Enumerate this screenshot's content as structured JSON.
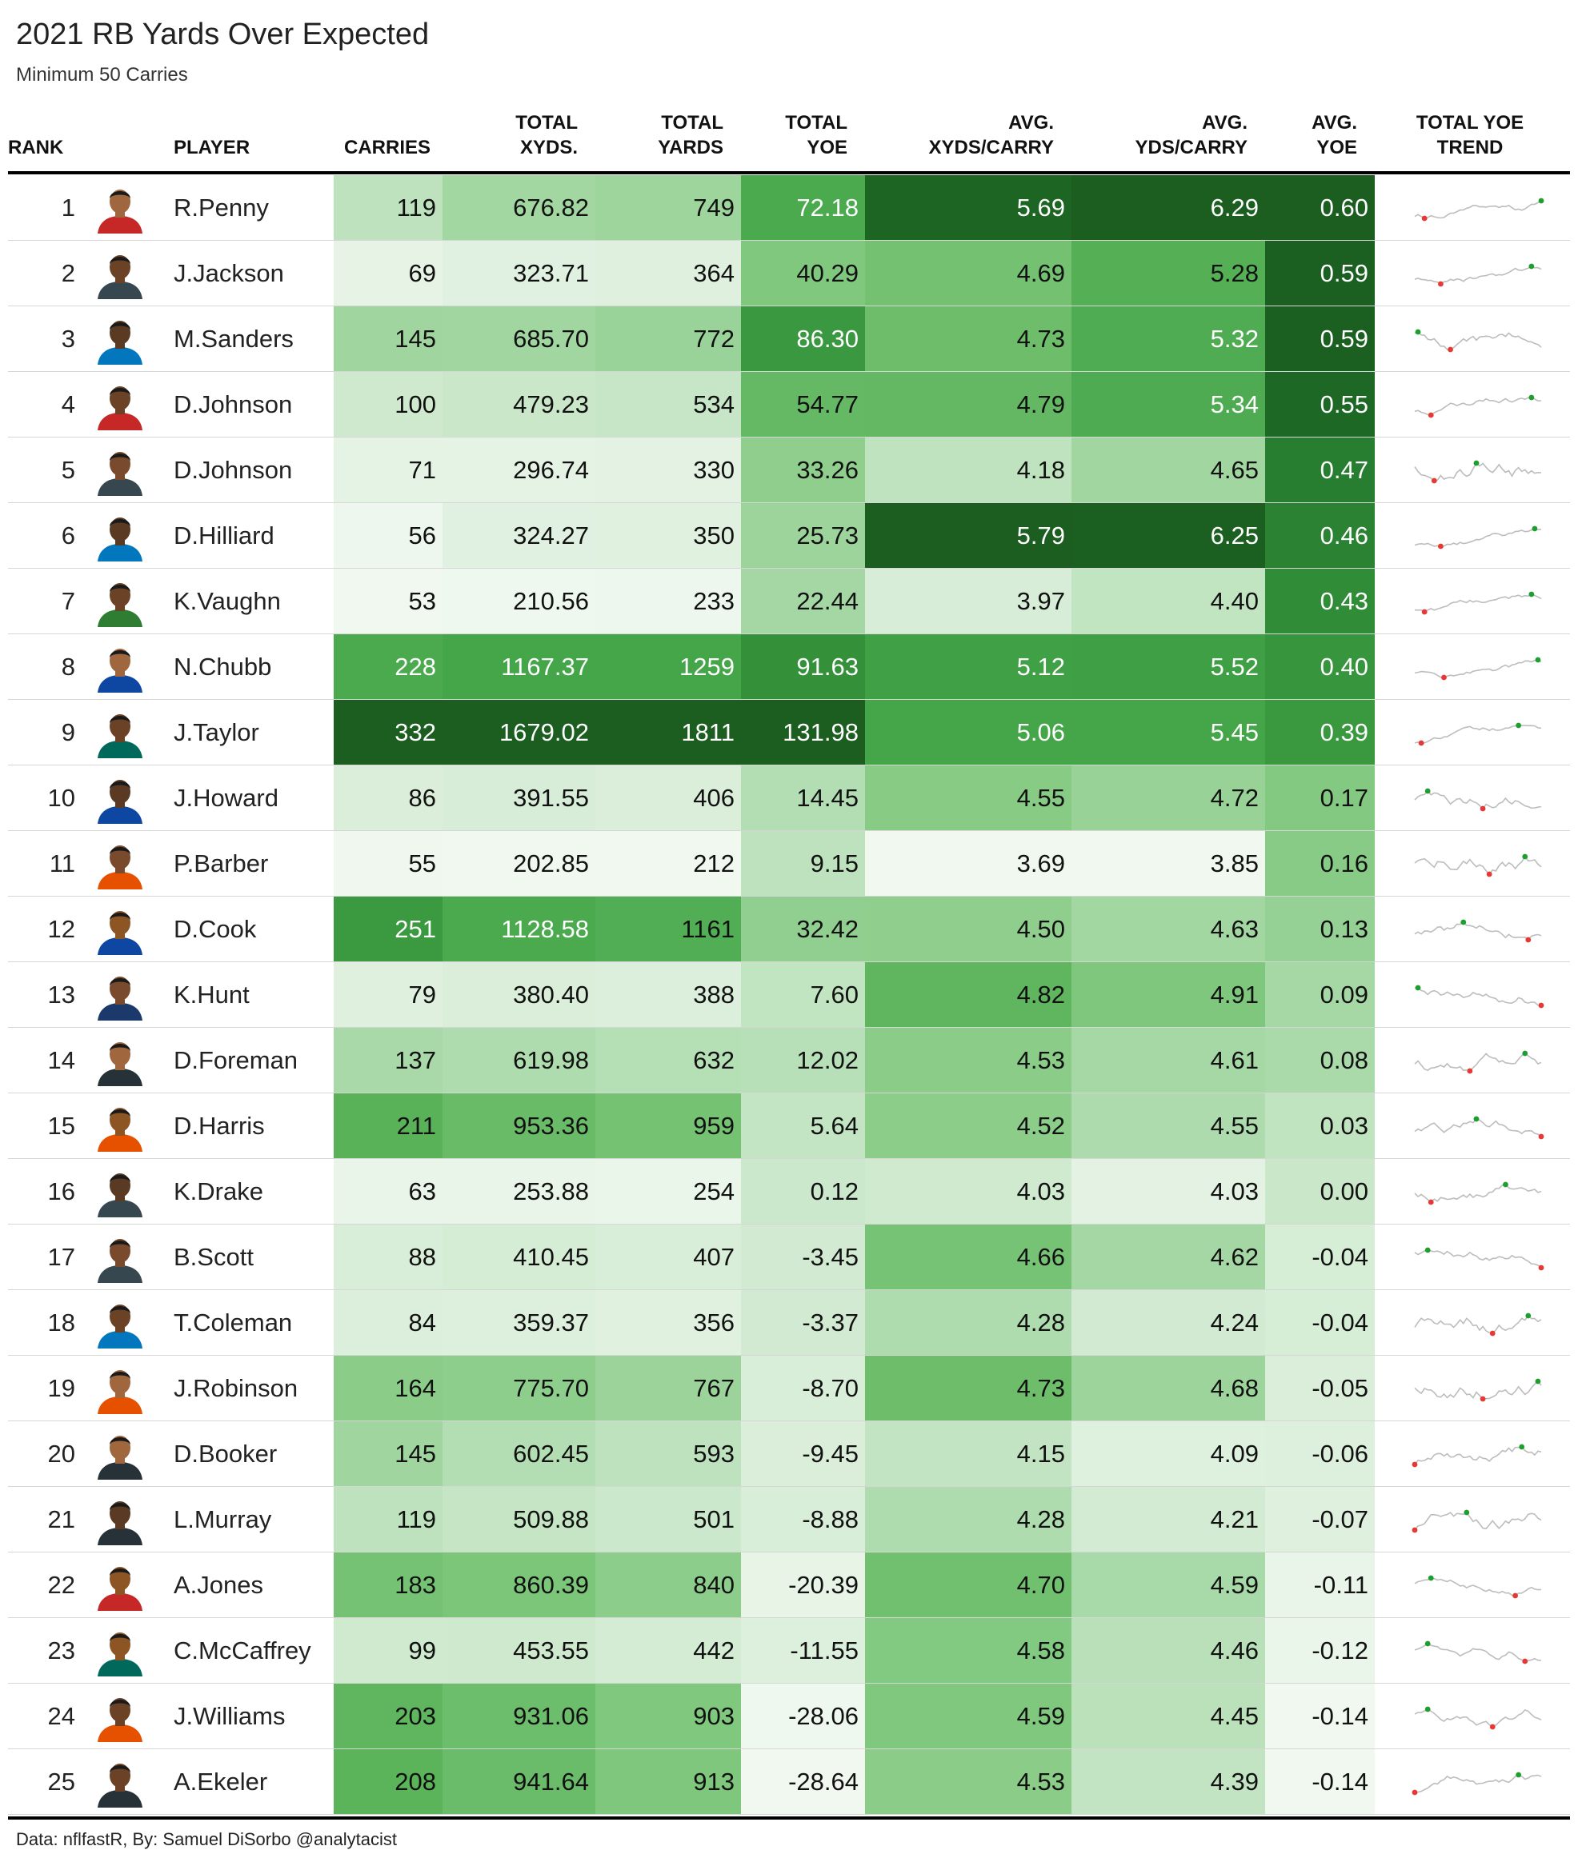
{
  "title": "2021 RB Yards Over Expected",
  "subtitle": "Minimum 50 Carries",
  "footer": "Data: nflfastR, By: Samuel DiSorbo @analytacist",
  "colors": {
    "scale": [
      "#f0f8ef",
      "#dcefdc",
      "#c2e4c2",
      "#9fd59e",
      "#7cc67a",
      "#5bb35a",
      "#42a347",
      "#2f8a36",
      "#1e6e28",
      "#1b5e20"
    ],
    "text_dark": "#111111",
    "text_light": "#ffffff",
    "spark_line": "#bdbdbd",
    "spark_min": "#e53935",
    "spark_max": "#1e9e2e"
  },
  "headers": {
    "rank": [
      "RANK"
    ],
    "player": [
      "PLAYER"
    ],
    "carries": [
      "CARRIES"
    ],
    "total_xyds": [
      "TOTAL",
      "XYDS."
    ],
    "total_yards": [
      "TOTAL",
      "YARDS"
    ],
    "total_yoe": [
      "TOTAL",
      "YOE"
    ],
    "avg_xyds_carry": [
      "AVG.",
      "XYDS/CARRY"
    ],
    "avg_yds_carry": [
      "AVG.",
      "YDS/CARRY"
    ],
    "avg_yoe": [
      "AVG.",
      "YOE"
    ],
    "trend": [
      "TOTAL YOE",
      "TREND"
    ]
  },
  "chart_data": {
    "type": "table",
    "title": "2021 RB Yards Over Expected",
    "subtitle": "Minimum 50 Carries",
    "columns": [
      "RANK",
      "PLAYER",
      "CARRIES",
      "TOTAL XYDS.",
      "TOTAL YARDS",
      "TOTAL YOE",
      "AVG. XYDS/CARRY",
      "AVG. YDS/CARRY",
      "AVG. YOE",
      "TOTAL YOE TREND"
    ],
    "rows": [
      {
        "rank": "1",
        "player": "R.Penny",
        "carries": "119",
        "total_xyds": "676.82",
        "total_yards": "749",
        "total_yoe": "72.18",
        "avg_xyds_carry": "5.69",
        "avg_yds_carry": "6.29",
        "avg_yoe": "0.60"
      },
      {
        "rank": "2",
        "player": "J.Jackson",
        "carries": "69",
        "total_xyds": "323.71",
        "total_yards": "364",
        "total_yoe": "40.29",
        "avg_xyds_carry": "4.69",
        "avg_yds_carry": "5.28",
        "avg_yoe": "0.59"
      },
      {
        "rank": "3",
        "player": "M.Sanders",
        "carries": "145",
        "total_xyds": "685.70",
        "total_yards": "772",
        "total_yoe": "86.30",
        "avg_xyds_carry": "4.73",
        "avg_yds_carry": "5.32",
        "avg_yoe": "0.59"
      },
      {
        "rank": "4",
        "player": "D.Johnson",
        "carries": "100",
        "total_xyds": "479.23",
        "total_yards": "534",
        "total_yoe": "54.77",
        "avg_xyds_carry": "4.79",
        "avg_yds_carry": "5.34",
        "avg_yoe": "0.55"
      },
      {
        "rank": "5",
        "player": "D.Johnson",
        "carries": "71",
        "total_xyds": "296.74",
        "total_yards": "330",
        "total_yoe": "33.26",
        "avg_xyds_carry": "4.18",
        "avg_yds_carry": "4.65",
        "avg_yoe": "0.47"
      },
      {
        "rank": "6",
        "player": "D.Hilliard",
        "carries": "56",
        "total_xyds": "324.27",
        "total_yards": "350",
        "total_yoe": "25.73",
        "avg_xyds_carry": "5.79",
        "avg_yds_carry": "6.25",
        "avg_yoe": "0.46"
      },
      {
        "rank": "7",
        "player": "K.Vaughn",
        "carries": "53",
        "total_xyds": "210.56",
        "total_yards": "233",
        "total_yoe": "22.44",
        "avg_xyds_carry": "3.97",
        "avg_yds_carry": "4.40",
        "avg_yoe": "0.43"
      },
      {
        "rank": "8",
        "player": "N.Chubb",
        "carries": "228",
        "total_xyds": "1167.37",
        "total_yards": "1259",
        "total_yoe": "91.63",
        "avg_xyds_carry": "5.12",
        "avg_yds_carry": "5.52",
        "avg_yoe": "0.40"
      },
      {
        "rank": "9",
        "player": "J.Taylor",
        "carries": "332",
        "total_xyds": "1679.02",
        "total_yards": "1811",
        "total_yoe": "131.98",
        "avg_xyds_carry": "5.06",
        "avg_yds_carry": "5.45",
        "avg_yoe": "0.39"
      },
      {
        "rank": "10",
        "player": "J.Howard",
        "carries": "86",
        "total_xyds": "391.55",
        "total_yards": "406",
        "total_yoe": "14.45",
        "avg_xyds_carry": "4.55",
        "avg_yds_carry": "4.72",
        "avg_yoe": "0.17"
      },
      {
        "rank": "11",
        "player": "P.Barber",
        "carries": "55",
        "total_xyds": "202.85",
        "total_yards": "212",
        "total_yoe": "9.15",
        "avg_xyds_carry": "3.69",
        "avg_yds_carry": "3.85",
        "avg_yoe": "0.16"
      },
      {
        "rank": "12",
        "player": "D.Cook",
        "carries": "251",
        "total_xyds": "1128.58",
        "total_yards": "1161",
        "total_yoe": "32.42",
        "avg_xyds_carry": "4.50",
        "avg_yds_carry": "4.63",
        "avg_yoe": "0.13"
      },
      {
        "rank": "13",
        "player": "K.Hunt",
        "carries": "79",
        "total_xyds": "380.40",
        "total_yards": "388",
        "total_yoe": "7.60",
        "avg_xyds_carry": "4.82",
        "avg_yds_carry": "4.91",
        "avg_yoe": "0.09"
      },
      {
        "rank": "14",
        "player": "D.Foreman",
        "carries": "137",
        "total_xyds": "619.98",
        "total_yards": "632",
        "total_yoe": "12.02",
        "avg_xyds_carry": "4.53",
        "avg_yds_carry": "4.61",
        "avg_yoe": "0.08"
      },
      {
        "rank": "15",
        "player": "D.Harris",
        "carries": "211",
        "total_xyds": "953.36",
        "total_yards": "959",
        "total_yoe": "5.64",
        "avg_xyds_carry": "4.52",
        "avg_yds_carry": "4.55",
        "avg_yoe": "0.03"
      },
      {
        "rank": "16",
        "player": "K.Drake",
        "carries": "63",
        "total_xyds": "253.88",
        "total_yards": "254",
        "total_yoe": "0.12",
        "avg_xyds_carry": "4.03",
        "avg_yds_carry": "4.03",
        "avg_yoe": "0.00"
      },
      {
        "rank": "17",
        "player": "B.Scott",
        "carries": "88",
        "total_xyds": "410.45",
        "total_yards": "407",
        "total_yoe": "-3.45",
        "avg_xyds_carry": "4.66",
        "avg_yds_carry": "4.62",
        "avg_yoe": "-0.04"
      },
      {
        "rank": "18",
        "player": "T.Coleman",
        "carries": "84",
        "total_xyds": "359.37",
        "total_yards": "356",
        "total_yoe": "-3.37",
        "avg_xyds_carry": "4.28",
        "avg_yds_carry": "4.24",
        "avg_yoe": "-0.04"
      },
      {
        "rank": "19",
        "player": "J.Robinson",
        "carries": "164",
        "total_xyds": "775.70",
        "total_yards": "767",
        "total_yoe": "-8.70",
        "avg_xyds_carry": "4.73",
        "avg_yds_carry": "4.68",
        "avg_yoe": "-0.05"
      },
      {
        "rank": "20",
        "player": "D.Booker",
        "carries": "145",
        "total_xyds": "602.45",
        "total_yards": "593",
        "total_yoe": "-9.45",
        "avg_xyds_carry": "4.15",
        "avg_yds_carry": "4.09",
        "avg_yoe": "-0.06"
      },
      {
        "rank": "21",
        "player": "L.Murray",
        "carries": "119",
        "total_xyds": "509.88",
        "total_yards": "501",
        "total_yoe": "-8.88",
        "avg_xyds_carry": "4.28",
        "avg_yds_carry": "4.21",
        "avg_yoe": "-0.07"
      },
      {
        "rank": "22",
        "player": "A.Jones",
        "carries": "183",
        "total_xyds": "860.39",
        "total_yards": "840",
        "total_yoe": "-20.39",
        "avg_xyds_carry": "4.70",
        "avg_yds_carry": "4.59",
        "avg_yoe": "-0.11"
      },
      {
        "rank": "23",
        "player": "C.McCaffrey",
        "carries": "99",
        "total_xyds": "453.55",
        "total_yards": "442",
        "total_yoe": "-11.55",
        "avg_xyds_carry": "4.58",
        "avg_yds_carry": "4.46",
        "avg_yoe": "-0.12"
      },
      {
        "rank": "24",
        "player": "J.Williams",
        "carries": "203",
        "total_xyds": "931.06",
        "total_yards": "903",
        "total_yoe": "-28.06",
        "avg_xyds_carry": "4.59",
        "avg_yds_carry": "4.45",
        "avg_yoe": "-0.14"
      },
      {
        "rank": "25",
        "player": "A.Ekeler",
        "carries": "208",
        "total_xyds": "941.64",
        "total_yards": "913",
        "total_yoe": "-28.64",
        "avg_xyds_carry": "4.53",
        "avg_yds_carry": "4.39",
        "avg_yoe": "-0.14"
      }
    ]
  }
}
